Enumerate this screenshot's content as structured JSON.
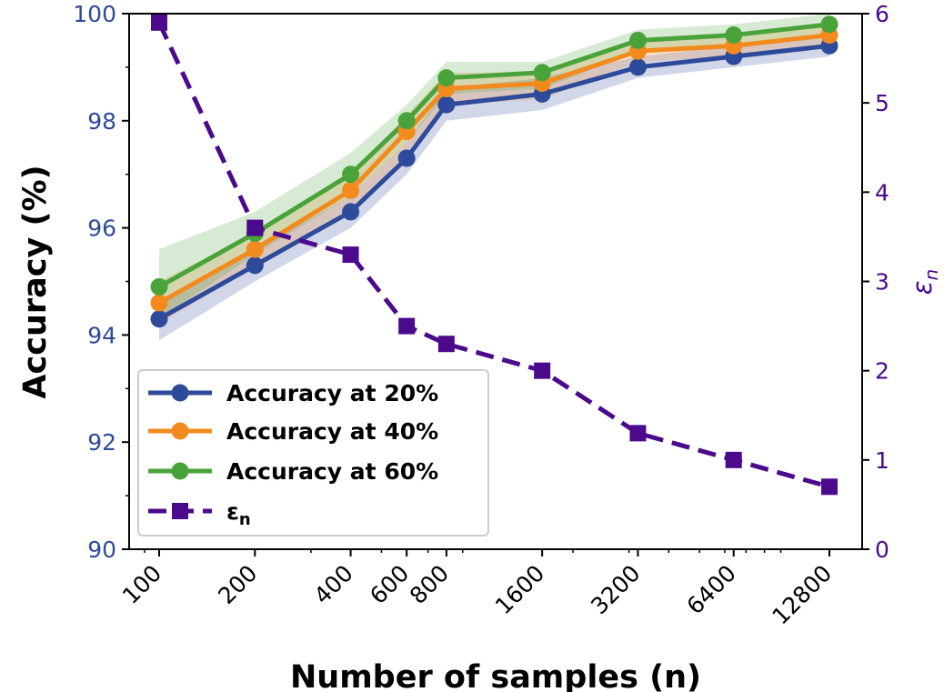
{
  "chart_data": {
    "type": "line",
    "xscale": "log",
    "xticks": [
      100,
      200,
      400,
      600,
      800,
      1600,
      3200,
      6400,
      12800
    ],
    "xtick_labels": [
      "100",
      "200",
      "400",
      "600",
      "800",
      "1600",
      "3200",
      "6400",
      "12800"
    ],
    "xlabel": "Number of samples (n)",
    "ylabel_left": "Accuracy (%)",
    "ylabel_right": "εn",
    "ylim_left": [
      90,
      100
    ],
    "ylim_right": [
      0,
      6
    ],
    "yticks_left": [
      "90",
      "92",
      "94",
      "96",
      "98",
      "100"
    ],
    "yticks_right": [
      "0",
      "1",
      "2",
      "3",
      "4",
      "5",
      "6"
    ],
    "legend_position": "lower-left",
    "series": [
      {
        "name": "Accuracy at 20%",
        "axis": "left",
        "color": "#2e4a9a",
        "marker": "circle",
        "line": "solid",
        "values": [
          94.3,
          95.3,
          96.3,
          97.3,
          98.3,
          98.5,
          99.0,
          99.2,
          99.4
        ],
        "band_lower": [
          93.9,
          95.0,
          96.0,
          97.0,
          98.0,
          98.2,
          98.8,
          99.0,
          99.2
        ],
        "band_upper": [
          94.6,
          95.6,
          96.6,
          97.6,
          98.6,
          98.8,
          99.2,
          99.4,
          99.6
        ]
      },
      {
        "name": "Accuracy at 40%",
        "axis": "left",
        "color": "#f28a1e",
        "marker": "circle",
        "line": "solid",
        "values": [
          94.6,
          95.6,
          96.7,
          97.8,
          98.6,
          98.7,
          99.3,
          99.4,
          99.6
        ],
        "band_lower": [
          94.2,
          95.3,
          96.3,
          97.4,
          98.3,
          98.4,
          99.1,
          99.2,
          99.4
        ],
        "band_upper": [
          95.0,
          95.9,
          97.0,
          98.1,
          98.9,
          98.9,
          99.5,
          99.6,
          99.8
        ]
      },
      {
        "name": "Accuracy at 60%",
        "axis": "left",
        "color": "#4aa33a",
        "marker": "circle",
        "line": "solid",
        "values": [
          94.9,
          95.9,
          97.0,
          98.0,
          98.8,
          98.9,
          99.5,
          99.6,
          99.8
        ],
        "band_lower": [
          94.3,
          95.5,
          96.6,
          97.6,
          98.5,
          98.6,
          99.3,
          99.4,
          99.6
        ],
        "band_upper": [
          95.6,
          96.3,
          97.4,
          98.3,
          99.1,
          99.1,
          99.7,
          99.8,
          100.0
        ]
      },
      {
        "name": "εn",
        "axis": "right",
        "color": "#4b0a8c",
        "marker": "square",
        "line": "dashed",
        "values": [
          5.9,
          3.6,
          3.3,
          2.5,
          2.3,
          2.0,
          1.3,
          1.0,
          0.7
        ]
      }
    ],
    "legend_labels": [
      {
        "base": "Accuracy at 20%",
        "sub": ""
      },
      {
        "base": "Accuracy at 40%",
        "sub": ""
      },
      {
        "base": "Accuracy at 60%",
        "sub": ""
      },
      {
        "base": "ε",
        "sub": "n"
      }
    ],
    "colors": {
      "left_axis": "#2e4a9a",
      "right_axis": "#4b0a8c",
      "axes": "#000000"
    }
  }
}
